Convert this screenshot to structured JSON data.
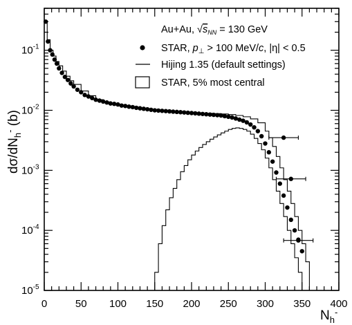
{
  "chart_data": {
    "type": "scatter",
    "ylabel": "dσ/dN",
    "ylabel_sub": "h",
    "ylabel_sup": "-",
    "ylabel_unit": " (b)",
    "xlabel": "N",
    "xlabel_sub": "h",
    "xlabel_sup": "-",
    "xlim": [
      0,
      400
    ],
    "ylim": [
      1e-05,
      0.5
    ],
    "yscale": "log",
    "grid": false,
    "legend_position": "top-right",
    "x_ticks": [
      "0",
      "50",
      "100",
      "150",
      "200",
      "250",
      "300",
      "350",
      "400"
    ],
    "y_ticks": [
      {
        "base": "10",
        "exp": "-5",
        "value": 1e-05
      },
      {
        "base": "10",
        "exp": "-4",
        "value": 0.0001
      },
      {
        "base": "10",
        "exp": "-3",
        "value": 0.001
      },
      {
        "base": "10",
        "exp": "-2",
        "value": 0.01
      },
      {
        "base": "10",
        "exp": "-1",
        "value": 0.1
      }
    ],
    "annotation": {
      "system": "Au+Au, ",
      "sqrt": "√",
      "s": "s",
      "s_sub": "NN",
      "energy": " = 130 GeV"
    },
    "legend": [
      {
        "kind": "marker",
        "text_pre": "STAR, ",
        "p": "p",
        "p_sub": "⊥",
        "text_mid": " > 100 MeV/",
        "c": "c",
        "text_post": ", |η| < 0.5"
      },
      {
        "kind": "line",
        "text": "Hijing 1.35 (default settings)"
      },
      {
        "kind": "box",
        "text": "STAR, 5% most central"
      }
    ],
    "series": [
      {
        "name": "STAR, p⊥ > 100 MeV/c, |η| < 0.5",
        "kind": "points",
        "x": [
          2,
          5,
          8,
          11,
          14,
          17,
          20,
          24,
          28,
          32,
          36,
          40,
          45,
          50,
          55,
          60,
          65,
          70,
          75,
          80,
          85,
          90,
          95,
          100,
          105,
          110,
          115,
          120,
          125,
          130,
          135,
          140,
          145,
          150,
          155,
          160,
          165,
          170,
          175,
          180,
          185,
          190,
          195,
          200,
          205,
          210,
          215,
          220,
          225,
          230,
          235,
          240,
          245,
          250,
          255,
          260,
          265,
          270,
          275,
          280,
          285,
          290,
          295,
          300,
          305,
          310,
          315,
          320,
          325,
          330,
          335,
          340,
          345,
          350
        ],
        "y": [
          0.3,
          0.14,
          0.1,
          0.085,
          0.07,
          0.06,
          0.05,
          0.042,
          0.036,
          0.032,
          0.028,
          0.025,
          0.022,
          0.02,
          0.018,
          0.017,
          0.016,
          0.015,
          0.0145,
          0.014,
          0.0135,
          0.013,
          0.0128,
          0.0125,
          0.012,
          0.0118,
          0.0115,
          0.0113,
          0.011,
          0.0108,
          0.0106,
          0.0104,
          0.0102,
          0.01,
          0.0099,
          0.0098,
          0.0097,
          0.0096,
          0.0095,
          0.0094,
          0.0093,
          0.0092,
          0.0091,
          0.009,
          0.0089,
          0.0088,
          0.0087,
          0.0086,
          0.0085,
          0.0084,
          0.0083,
          0.0082,
          0.008,
          0.0078,
          0.0076,
          0.0073,
          0.007,
          0.0067,
          0.0063,
          0.0058,
          0.0052,
          0.0045,
          0.0037,
          0.0028,
          0.002,
          0.0014,
          0.00092,
          0.0006,
          0.00038,
          0.00024,
          0.00015,
          0.0001,
          7e-05,
          4.5e-05
        ],
        "error_bars": [
          {
            "x": 325,
            "y": 0.0035,
            "xerr": 20
          },
          {
            "x": 335,
            "y": 0.00072,
            "xerr": 20
          },
          {
            "x": 345,
            "y": 6.8e-05,
            "xerr": 20
          }
        ]
      },
      {
        "name": "Hijing 1.35 (default settings)",
        "kind": "step-line",
        "x": [
          0,
          4,
          8,
          12,
          16,
          20,
          25,
          30,
          35,
          40,
          50,
          60,
          70,
          80,
          90,
          100,
          110,
          120,
          130,
          140,
          150,
          160,
          170,
          180,
          190,
          200,
          210,
          220,
          230,
          240,
          250,
          260,
          270,
          280,
          290,
          300,
          305,
          310,
          315,
          320,
          325,
          330,
          335,
          340,
          345,
          350,
          355,
          360
        ],
        "y": [
          0.3,
          0.15,
          0.1,
          0.08,
          0.065,
          0.055,
          0.045,
          0.037,
          0.031,
          0.027,
          0.021,
          0.0175,
          0.015,
          0.0138,
          0.0129,
          0.0121,
          0.0115,
          0.011,
          0.0106,
          0.0102,
          0.0099,
          0.0097,
          0.0095,
          0.0093,
          0.0092,
          0.0091,
          0.009,
          0.0089,
          0.0088,
          0.0087,
          0.0085,
          0.0082,
          0.0078,
          0.0072,
          0.0062,
          0.0045,
          0.0035,
          0.0025,
          0.0017,
          0.0011,
          0.0007,
          0.00045,
          0.00028,
          0.00017,
          0.0001,
          6e-05,
          3e-05,
          1e-05
        ]
      },
      {
        "name": "STAR, 5% most central",
        "kind": "step-histogram",
        "x": [
          145,
          150,
          155,
          160,
          165,
          170,
          175,
          180,
          185,
          190,
          195,
          200,
          205,
          210,
          215,
          220,
          225,
          230,
          235,
          240,
          245,
          250,
          255,
          260,
          265,
          270,
          275,
          280,
          285,
          290,
          295,
          300,
          305,
          310,
          315,
          320,
          325,
          330,
          335,
          340,
          345,
          350,
          355,
          360
        ],
        "y": [
          1e-05,
          2e-05,
          6e-05,
          0.00012,
          0.00022,
          0.00035,
          0.0005,
          0.0007,
          0.00095,
          0.0012,
          0.0015,
          0.0018,
          0.0021,
          0.0024,
          0.0027,
          0.003,
          0.0033,
          0.0036,
          0.0039,
          0.0042,
          0.0045,
          0.0048,
          0.005,
          0.0051,
          0.005,
          0.0048,
          0.0045,
          0.004,
          0.0034,
          0.0028,
          0.0022,
          0.0016,
          0.0011,
          0.0007,
          0.00045,
          0.00028,
          0.00017,
          0.0001,
          6e-05,
          3.5e-05,
          2e-05,
          1e-05,
          1e-05,
          1e-05
        ]
      }
    ]
  }
}
